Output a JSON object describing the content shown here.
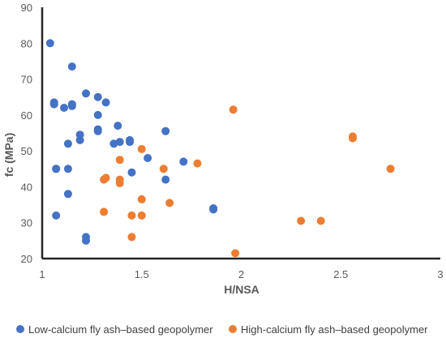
{
  "chart_data": {
    "type": "scatter",
    "title": "",
    "xlabel": "H/NSA",
    "ylabel": "fc (MPa)",
    "xlim": [
      1,
      3
    ],
    "ylim": [
      20,
      90
    ],
    "x_ticks": [
      "1",
      "1.5",
      "2",
      "2.5",
      "3"
    ],
    "y_ticks": [
      "20",
      "30",
      "40",
      "50",
      "60",
      "70",
      "80",
      "90"
    ],
    "x_tick_values": [
      1,
      1.5,
      2,
      2.5,
      3
    ],
    "y_tick_values": [
      20,
      30,
      40,
      50,
      60,
      70,
      80,
      90
    ],
    "grid": false,
    "legend_position": "bottom",
    "series": [
      {
        "name": "Low-calcium fly ash–based geopolymer",
        "color": "#4472C4",
        "points": [
          [
            1.04,
            80.0
          ],
          [
            1.06,
            63.5
          ],
          [
            1.06,
            63.0
          ],
          [
            1.07,
            45.0
          ],
          [
            1.07,
            45.0
          ],
          [
            1.07,
            32.0
          ],
          [
            1.11,
            62.0
          ],
          [
            1.13,
            52.0
          ],
          [
            1.13,
            45.0
          ],
          [
            1.13,
            38.0
          ],
          [
            1.15,
            73.5
          ],
          [
            1.15,
            63.0
          ],
          [
            1.15,
            62.5
          ],
          [
            1.19,
            54.5
          ],
          [
            1.19,
            53.0
          ],
          [
            1.22,
            66.0
          ],
          [
            1.22,
            26.0
          ],
          [
            1.22,
            25.0
          ],
          [
            1.28,
            65.0
          ],
          [
            1.28,
            60.0
          ],
          [
            1.28,
            56.0
          ],
          [
            1.28,
            55.5
          ],
          [
            1.32,
            63.5
          ],
          [
            1.36,
            52.0
          ],
          [
            1.38,
            57.0
          ],
          [
            1.39,
            52.5
          ],
          [
            1.44,
            53.0
          ],
          [
            1.44,
            52.5
          ],
          [
            1.45,
            44.0
          ],
          [
            1.53,
            48.0
          ],
          [
            1.62,
            55.5
          ],
          [
            1.62,
            42.0
          ],
          [
            1.71,
            47.0
          ],
          [
            1.86,
            34.0
          ],
          [
            1.86,
            33.7
          ]
        ]
      },
      {
        "name": "High-calcium fly ash–based geopolymer",
        "color": "#ED7D31",
        "points": [
          [
            1.31,
            33.0
          ],
          [
            1.31,
            42.0
          ],
          [
            1.32,
            42.5
          ],
          [
            1.39,
            47.5
          ],
          [
            1.39,
            42.0
          ],
          [
            1.39,
            41.0
          ],
          [
            1.45,
            32.0
          ],
          [
            1.45,
            26.0
          ],
          [
            1.5,
            50.5
          ],
          [
            1.5,
            36.5
          ],
          [
            1.5,
            32.0
          ],
          [
            1.61,
            45.0
          ],
          [
            1.64,
            35.5
          ],
          [
            1.78,
            46.5
          ],
          [
            1.96,
            61.5
          ],
          [
            1.97,
            21.5
          ],
          [
            2.3,
            30.5
          ],
          [
            2.4,
            30.5
          ],
          [
            2.56,
            54.0
          ],
          [
            2.56,
            53.5
          ],
          [
            2.75,
            45.0
          ]
        ]
      }
    ]
  }
}
